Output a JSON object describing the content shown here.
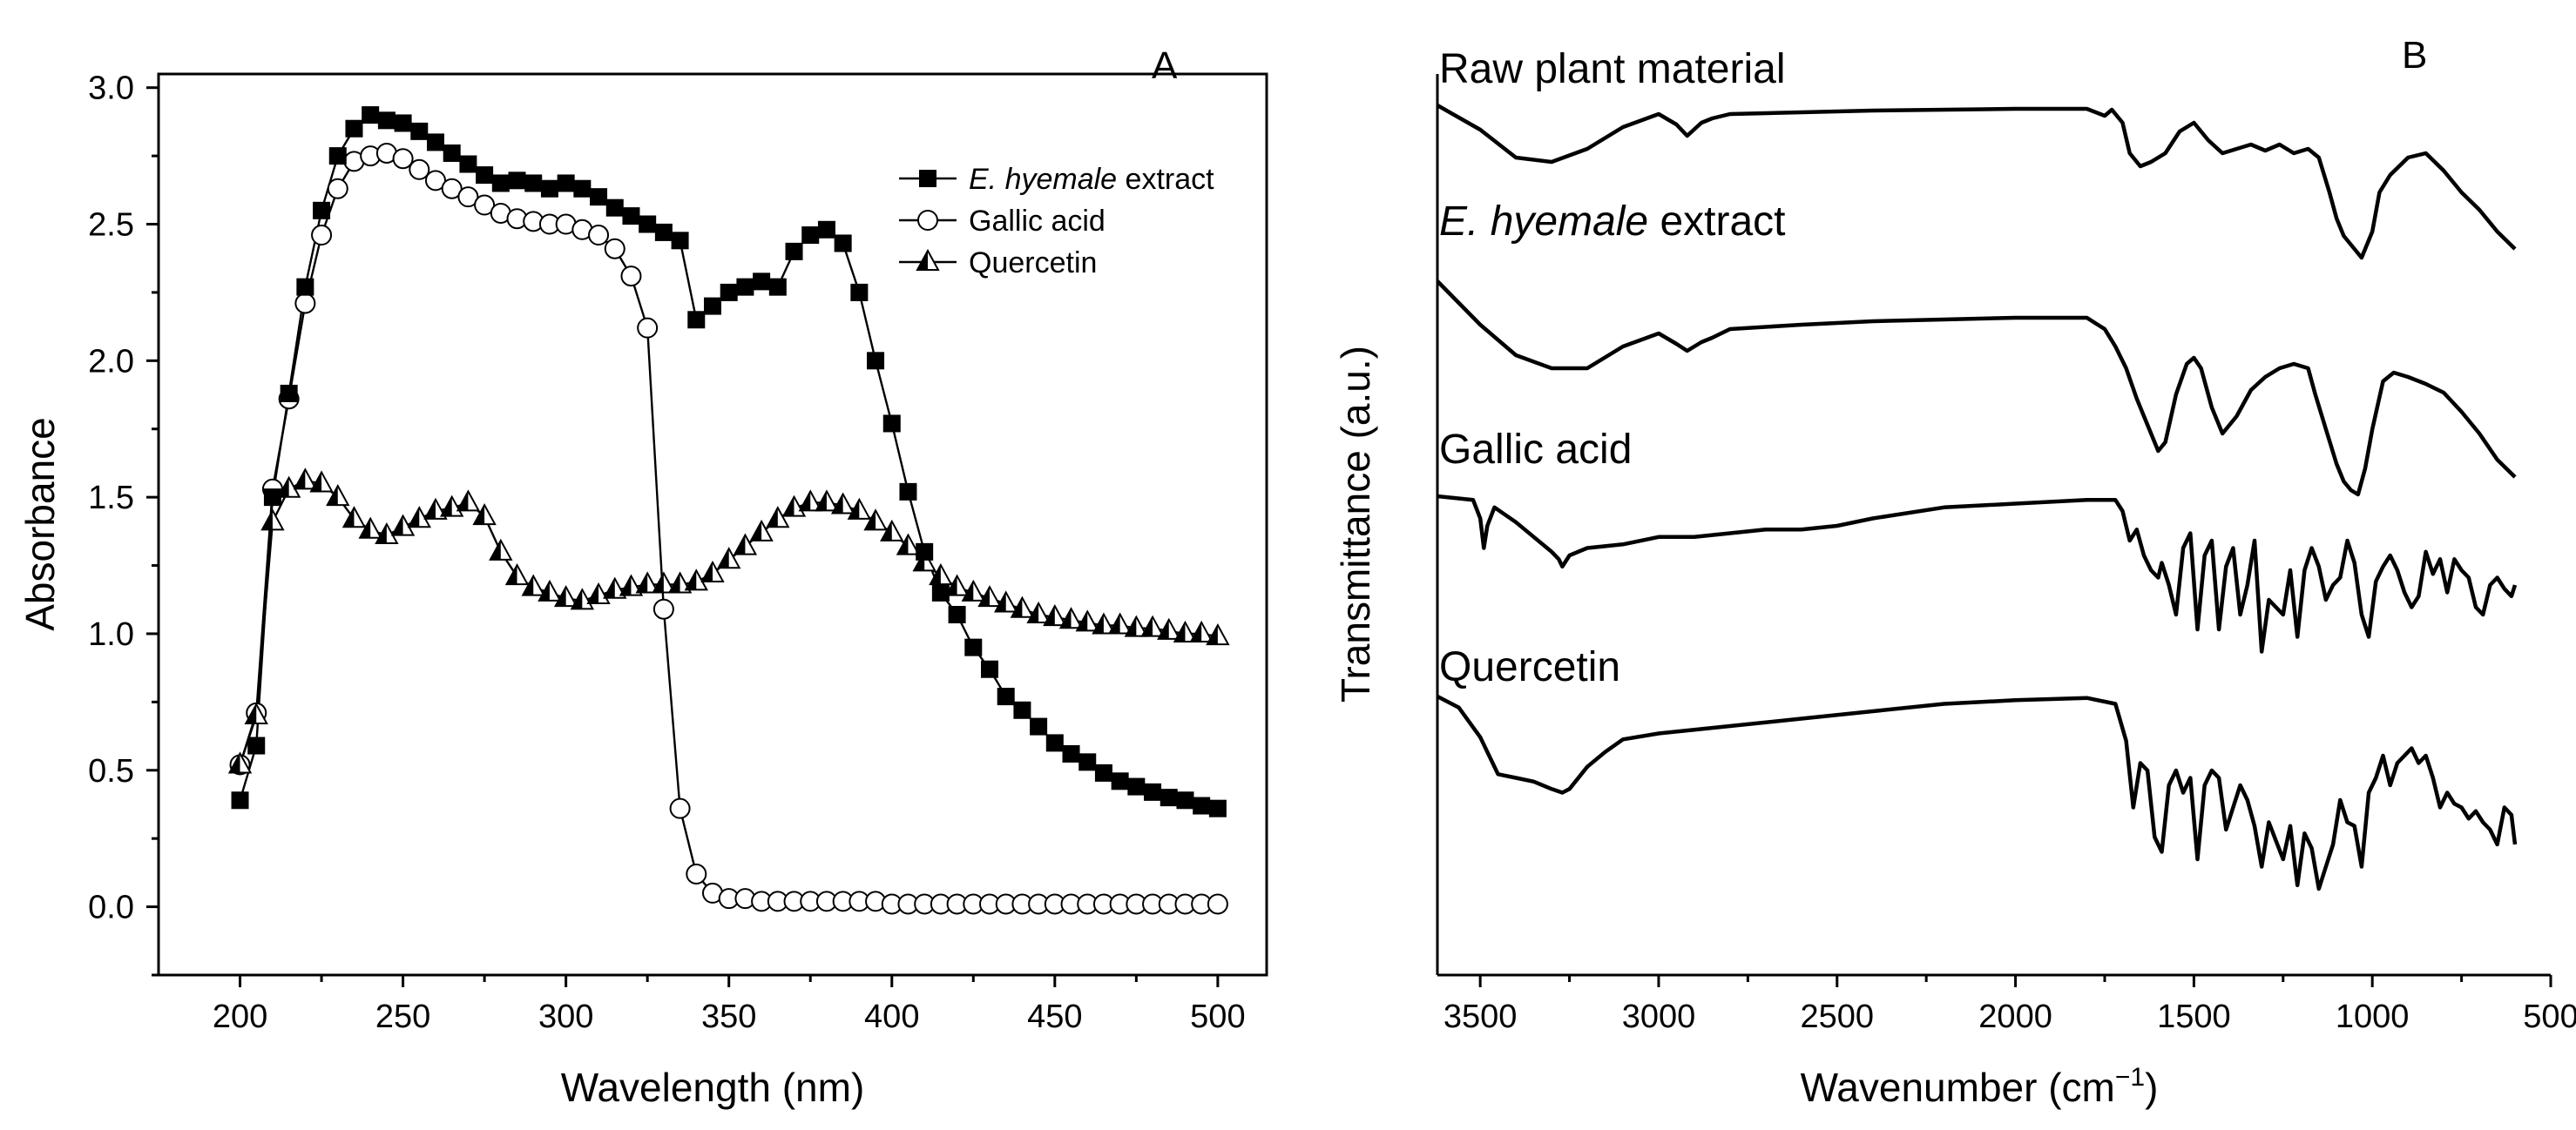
{
  "chart_data": [
    {
      "type": "scatter",
      "panel": "A",
      "xlabel": "Wavelength (nm)",
      "ylabel": "Absorbance",
      "xlim": [
        175,
        515
      ],
      "ylim": [
        -0.25,
        3.05
      ],
      "xticks": [
        200,
        250,
        300,
        350,
        400,
        450,
        500
      ],
      "yticks": [
        0.0,
        0.5,
        1.0,
        1.5,
        2.0,
        2.5,
        3.0
      ],
      "xtick_labels": [
        "200",
        "250",
        "300",
        "350",
        "400",
        "450",
        "500"
      ],
      "ytick_labels": [
        "0.0",
        "0.5",
        "1.0",
        "1.5",
        "2.0",
        "2.5",
        "3.0"
      ],
      "legend": {
        "placement": "top-right",
        "entries": [
          {
            "italic": "E. hyemale",
            "text": " extract",
            "marker": "filled-square"
          },
          {
            "italic": "",
            "text": "Gallic acid",
            "marker": "open-circle"
          },
          {
            "italic": "",
            "text": "Quercetin",
            "marker": "half-triangle"
          }
        ]
      },
      "x": [
        200,
        205,
        210,
        215,
        220,
        225,
        230,
        235,
        240,
        245,
        250,
        255,
        260,
        265,
        270,
        275,
        280,
        285,
        290,
        295,
        300,
        305,
        310,
        315,
        320,
        325,
        330,
        335,
        340,
        345,
        350,
        355,
        360,
        365,
        370,
        375,
        380,
        385,
        390,
        395,
        400,
        405,
        410,
        415,
        420,
        425,
        430,
        435,
        440,
        445,
        450,
        455,
        460,
        465,
        470,
        475,
        480,
        485,
        490,
        495,
        500
      ],
      "series": [
        {
          "name": "E. hyemale extract",
          "marker": "filled-square",
          "values": [
            0.39,
            0.59,
            1.5,
            1.88,
            2.27,
            2.55,
            2.75,
            2.85,
            2.9,
            2.88,
            2.87,
            2.84,
            2.8,
            2.76,
            2.72,
            2.68,
            2.65,
            2.66,
            2.65,
            2.63,
            2.65,
            2.63,
            2.6,
            2.56,
            2.53,
            2.5,
            2.47,
            2.44,
            2.15,
            2.2,
            2.25,
            2.27,
            2.29,
            2.27,
            2.4,
            2.46,
            2.48,
            2.43,
            2.25,
            2.0,
            1.77,
            1.52,
            1.3,
            1.15,
            1.07,
            0.95,
            0.87,
            0.77,
            0.72,
            0.66,
            0.6,
            0.56,
            0.53,
            0.49,
            0.46,
            0.44,
            0.42,
            0.4,
            0.39,
            0.37,
            0.36
          ]
        },
        {
          "name": "Gallic acid",
          "marker": "open-circle",
          "values": [
            0.52,
            0.71,
            1.53,
            1.86,
            2.21,
            2.46,
            2.63,
            2.73,
            2.75,
            2.76,
            2.74,
            2.7,
            2.66,
            2.63,
            2.6,
            2.57,
            2.54,
            2.52,
            2.51,
            2.5,
            2.5,
            2.48,
            2.46,
            2.41,
            2.31,
            2.12,
            1.09,
            0.36,
            0.12,
            0.05,
            0.03,
            0.03,
            0.02,
            0.02,
            0.02,
            0.02,
            0.02,
            0.02,
            0.02,
            0.02,
            0.01,
            0.01,
            0.01,
            0.01,
            0.01,
            0.01,
            0.01,
            0.01,
            0.01,
            0.01,
            0.01,
            0.01,
            0.01,
            0.01,
            0.01,
            0.01,
            0.01,
            0.01,
            0.01,
            0.01,
            0.01
          ]
        },
        {
          "name": "Quercetin",
          "marker": "half-triangle",
          "values": [
            0.52,
            0.7,
            1.41,
            1.53,
            1.56,
            1.55,
            1.5,
            1.42,
            1.38,
            1.36,
            1.39,
            1.42,
            1.45,
            1.46,
            1.48,
            1.43,
            1.3,
            1.21,
            1.17,
            1.15,
            1.13,
            1.12,
            1.14,
            1.16,
            1.17,
            1.18,
            1.18,
            1.18,
            1.19,
            1.22,
            1.27,
            1.32,
            1.37,
            1.42,
            1.46,
            1.48,
            1.48,
            1.47,
            1.45,
            1.41,
            1.37,
            1.32,
            1.26,
            1.21,
            1.17,
            1.15,
            1.13,
            1.11,
            1.09,
            1.07,
            1.06,
            1.05,
            1.04,
            1.03,
            1.03,
            1.02,
            1.02,
            1.01,
            1.0,
            1.0,
            0.99
          ]
        }
      ]
    },
    {
      "type": "line",
      "panel": "B",
      "xlabel_main": "Wavenumber (cm",
      "xlabel_sup": "−1",
      "xlabel_close": ")",
      "ylabel": "Transmittance (a.u.)",
      "xlim": [
        3620,
        500
      ],
      "xticks": [
        3500,
        3000,
        2500,
        2000,
        1500,
        1000,
        500
      ],
      "xtick_labels": [
        "3500",
        "3000",
        "2500",
        "2000",
        "1500",
        "1000",
        "500"
      ],
      "series": [
        {
          "name": "Raw plant material",
          "italic": "",
          "text": "Raw plant material",
          "offset": 0,
          "x": [
            3620,
            3500,
            3400,
            3300,
            3200,
            3100,
            3000,
            2950,
            2920,
            2880,
            2850,
            2800,
            2600,
            2400,
            2000,
            1800,
            1750,
            1730,
            1700,
            1680,
            1650,
            1620,
            1580,
            1540,
            1500,
            1460,
            1420,
            1380,
            1340,
            1300,
            1260,
            1220,
            1180,
            1150,
            1120,
            1100,
            1080,
            1050,
            1030,
            1000,
            980,
            950,
            900,
            850,
            800,
            750,
            700,
            650,
            600
          ],
          "values": [
            0,
            -28,
            -60,
            -65,
            -50,
            -25,
            -10,
            -22,
            -35,
            -20,
            -15,
            -10,
            -8,
            -6,
            -4,
            -4,
            -12,
            -5,
            -20,
            -55,
            -70,
            -65,
            -55,
            -30,
            -20,
            -40,
            -55,
            -50,
            -45,
            -52,
            -45,
            -55,
            -50,
            -60,
            -100,
            -130,
            -150,
            -165,
            -175,
            -145,
            -100,
            -80,
            -60,
            -55,
            -75,
            -100,
            -120,
            -145,
            -165
          ]
        },
        {
          "name": "E. hyemale extract",
          "italic": "E. hyemale",
          "text": " extract",
          "offset": 260,
          "x": [
            3620,
            3500,
            3400,
            3300,
            3200,
            3100,
            3000,
            2950,
            2920,
            2880,
            2850,
            2800,
            2600,
            2400,
            2000,
            1800,
            1750,
            1720,
            1690,
            1660,
            1630,
            1600,
            1580,
            1550,
            1520,
            1500,
            1480,
            1450,
            1420,
            1380,
            1340,
            1300,
            1260,
            1220,
            1180,
            1160,
            1130,
            1100,
            1080,
            1060,
            1040,
            1020,
            1000,
            970,
            940,
            900,
            850,
            800,
            750,
            700,
            650,
            600
          ],
          "values": [
            0,
            -50,
            -85,
            -100,
            -100,
            -75,
            -60,
            -72,
            -80,
            -70,
            -65,
            -55,
            -50,
            -46,
            -42,
            -42,
            -55,
            -75,
            -100,
            -135,
            -165,
            -195,
            -185,
            -130,
            -95,
            -88,
            -100,
            -145,
            -175,
            -155,
            -125,
            -110,
            -100,
            -95,
            -100,
            -130,
            -170,
            -210,
            -230,
            -240,
            -245,
            -215,
            -170,
            -115,
            -105,
            -110,
            -118,
            -128,
            -150,
            -175,
            -205,
            -225
          ]
        },
        {
          "name": "Gallic acid",
          "italic": "",
          "text": "Gallic acid",
          "offset": 560,
          "x": [
            3620,
            3520,
            3500,
            3490,
            3480,
            3460,
            3400,
            3350,
            3300,
            3280,
            3270,
            3250,
            3200,
            3100,
            3000,
            2900,
            2800,
            2700,
            2600,
            2500,
            2400,
            2200,
            2000,
            1800,
            1720,
            1700,
            1680,
            1660,
            1640,
            1620,
            1600,
            1590,
            1570,
            1550,
            1530,
            1510,
            1490,
            1470,
            1450,
            1430,
            1410,
            1390,
            1370,
            1350,
            1330,
            1310,
            1290,
            1270,
            1250,
            1230,
            1210,
            1190,
            1170,
            1150,
            1130,
            1110,
            1090,
            1070,
            1050,
            1030,
            1010,
            990,
            970,
            950,
            930,
            910,
            890,
            870,
            850,
            830,
            810,
            790,
            770,
            750,
            730,
            710,
            690,
            670,
            650,
            630,
            610,
            600
          ],
          "values": [
            0,
            -5,
            -30,
            -70,
            -40,
            -15,
            -35,
            -55,
            -75,
            -85,
            -95,
            -80,
            -70,
            -65,
            -55,
            -55,
            -50,
            -45,
            -45,
            -40,
            -30,
            -15,
            -10,
            -5,
            -5,
            -20,
            -60,
            -45,
            -80,
            -100,
            -110,
            -90,
            -120,
            -160,
            -70,
            -50,
            -180,
            -80,
            -60,
            -180,
            -95,
            -70,
            -160,
            -120,
            -60,
            -210,
            -140,
            -150,
            -160,
            -100,
            -190,
            -100,
            -70,
            -95,
            -140,
            -120,
            -110,
            -60,
            -90,
            -160,
            -190,
            -115,
            -95,
            -80,
            -100,
            -130,
            -150,
            -135,
            -75,
            -105,
            -85,
            -130,
            -85,
            -100,
            -110,
            -150,
            -160,
            -120,
            -110,
            -125,
            -135,
            -120
          ]
        },
        {
          "name": "Quercetin",
          "italic": "",
          "text": "Quercetin",
          "offset": 820,
          "x": [
            3620,
            3560,
            3500,
            3450,
            3400,
            3350,
            3300,
            3270,
            3250,
            3200,
            3150,
            3100,
            3000,
            2900,
            2800,
            2600,
            2400,
            2200,
            2000,
            1800,
            1720,
            1690,
            1670,
            1650,
            1630,
            1610,
            1590,
            1570,
            1550,
            1530,
            1510,
            1490,
            1470,
            1450,
            1430,
            1410,
            1390,
            1370,
            1350,
            1330,
            1310,
            1290,
            1270,
            1250,
            1230,
            1210,
            1190,
            1170,
            1150,
            1130,
            1110,
            1090,
            1070,
            1050,
            1030,
            1010,
            990,
            970,
            950,
            930,
            910,
            890,
            870,
            850,
            830,
            810,
            790,
            770,
            750,
            730,
            710,
            690,
            670,
            650,
            630,
            610,
            600
          ],
          "values": [
            0,
            -15,
            -55,
            -105,
            -110,
            -115,
            -125,
            -130,
            -125,
            -95,
            -75,
            -58,
            -50,
            -45,
            -40,
            -30,
            -20,
            -10,
            -5,
            -2,
            -10,
            -60,
            -150,
            -90,
            -100,
            -190,
            -210,
            -120,
            -100,
            -130,
            -110,
            -220,
            -120,
            -100,
            -110,
            -180,
            -150,
            -120,
            -140,
            -175,
            -230,
            -170,
            -195,
            -220,
            -175,
            -255,
            -185,
            -205,
            -260,
            -230,
            -200,
            -140,
            -170,
            -175,
            -230,
            -130,
            -110,
            -80,
            -120,
            -90,
            -80,
            -70,
            -90,
            -80,
            -110,
            -150,
            -130,
            -145,
            -150,
            -165,
            -155,
            -170,
            -180,
            -200,
            -150,
            -160,
            -200
          ]
        }
      ]
    }
  ]
}
